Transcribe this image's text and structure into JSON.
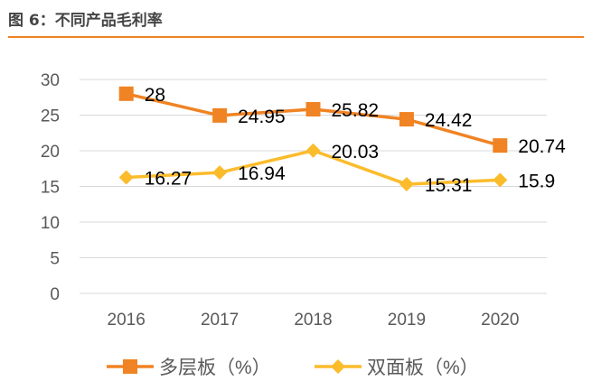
{
  "title": "图 6：不同产品毛利率",
  "chart_data": {
    "type": "line",
    "title": "",
    "xlabel": "",
    "ylabel": "",
    "categories": [
      "2016",
      "2017",
      "2018",
      "2019",
      "2020"
    ],
    "ylim": [
      0,
      30
    ],
    "yticks": [
      0,
      5,
      10,
      15,
      20,
      25,
      30
    ],
    "grid": true,
    "legend": "bottom",
    "series": [
      {
        "name": "多层板（%）",
        "values": [
          28,
          24.95,
          25.82,
          24.42,
          20.74
        ],
        "labels": [
          "28",
          "24.95",
          "25.82",
          "24.42",
          "20.74"
        ],
        "color": "#f08323",
        "marker": "square"
      },
      {
        "name": "双面板（%）",
        "values": [
          16.27,
          16.94,
          20.03,
          15.31,
          15.9
        ],
        "labels": [
          "16.27",
          "16.94",
          "20.03",
          "15.31",
          "15.9"
        ],
        "color": "#fbbc2c",
        "marker": "diamond"
      }
    ]
  }
}
